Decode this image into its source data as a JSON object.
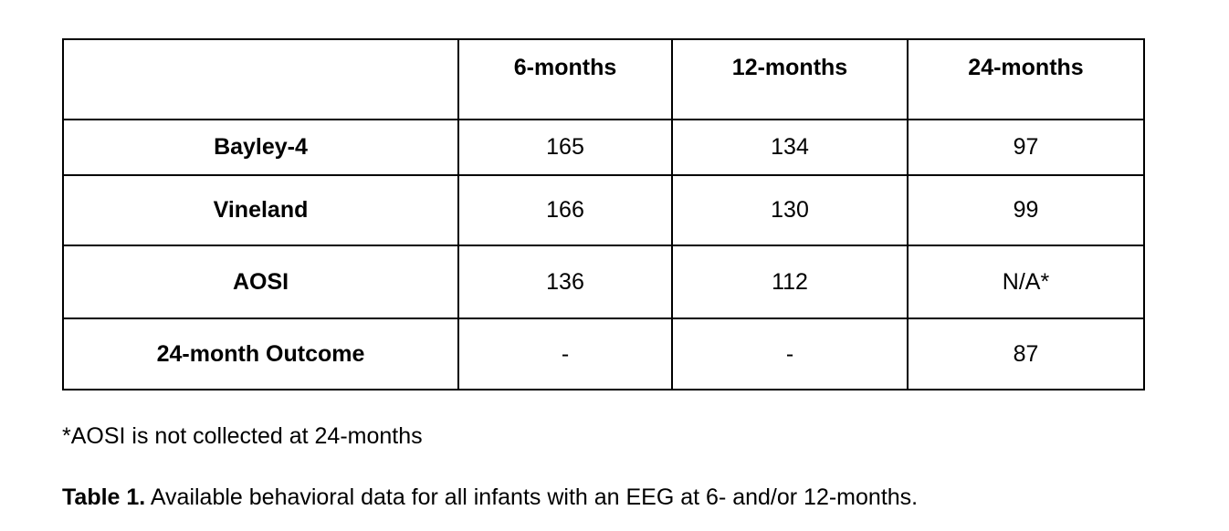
{
  "table": {
    "header": [
      "",
      "6-months",
      "12-months",
      "24-months"
    ],
    "rows": [
      {
        "label": "Bayley-4",
        "values": [
          "165",
          "134",
          "97"
        ]
      },
      {
        "label": "Vineland",
        "values": [
          "166",
          "130",
          "99"
        ]
      },
      {
        "label": "AOSI",
        "values": [
          "136",
          "112",
          "N/A*"
        ]
      },
      {
        "label": "24-month Outcome",
        "values": [
          "-",
          "-",
          "87"
        ]
      }
    ]
  },
  "footnote": "*AOSI is not collected at 24-months",
  "caption": {
    "label": "Table 1.",
    "text": " Available behavioral data for all infants with an EEG at 6- and/or 12-months."
  }
}
